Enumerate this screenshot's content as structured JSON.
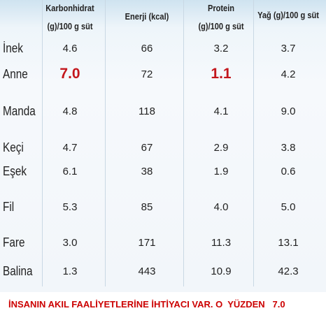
{
  "table": {
    "columns": [
      {
        "lines": [
          "Karbonhidrat",
          "(g)/100 g süt"
        ]
      },
      {
        "lines": [
          "Enerji (kcal)"
        ]
      },
      {
        "lines": [
          "Protein",
          "(g)/100 g süt"
        ]
      },
      {
        "lines": [
          "Yağ (g)/100 g süt"
        ]
      }
    ],
    "rows": [
      {
        "name": "İnek",
        "values": [
          "4.6",
          "66",
          "3.2",
          "3.7"
        ]
      },
      {
        "name": "Anne",
        "values": [
          "7.0",
          "72",
          "1.1",
          "4.2"
        ]
      },
      {
        "name": "Manda",
        "values": [
          "4.8",
          "118",
          "4.1",
          "9.0"
        ]
      },
      {
        "name": "Keçi",
        "values": [
          "4.7",
          "67",
          "2.9",
          "3.8"
        ]
      },
      {
        "name": "Eşek",
        "values": [
          "6.1",
          "38",
          "1.9",
          "0.6"
        ]
      },
      {
        "name": "Fil",
        "values": [
          "5.3",
          "85",
          "4.0",
          "5.0"
        ]
      },
      {
        "name": "Fare",
        "values": [
          "3.0",
          "171",
          "11.3",
          "13.1"
        ]
      },
      {
        "name": "Balina",
        "values": [
          "1.3",
          "443",
          "10.9",
          "42.3"
        ]
      }
    ],
    "emphasis": [
      {
        "row": 1,
        "col": 0
      },
      {
        "row": 1,
        "col": 2
      }
    ],
    "emphasis_color": "#c3161c"
  },
  "caption": "İNSANIN AKIL FAALİYETLERİNE İHTİYACI VAR. O  YÜZDEN   7.0"
}
